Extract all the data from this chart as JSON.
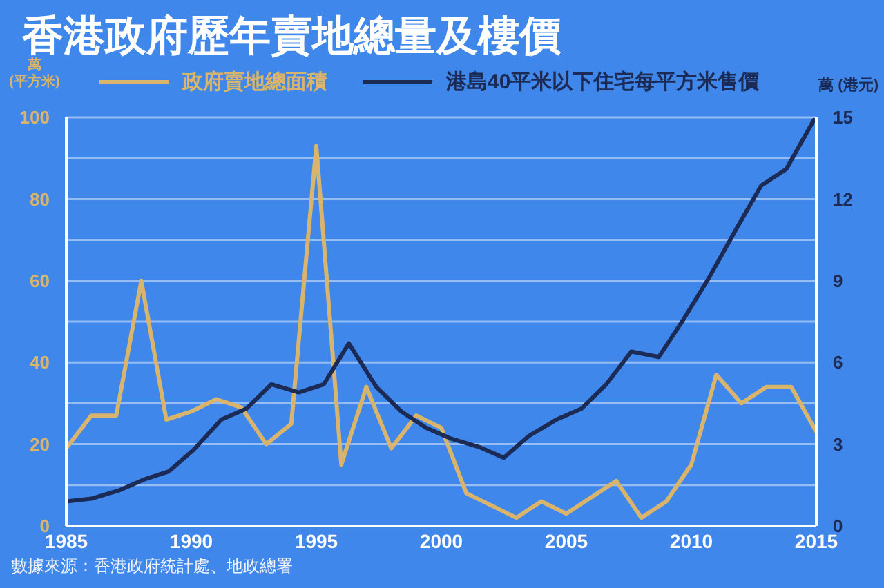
{
  "chart_data": {
    "type": "line",
    "title": "香港政府歷年賣地總量及樓價",
    "ylabel": "萬 (平方米)",
    "y2label": "萬 (港元)",
    "annotations": [
      "數據來源：香港政府統計處、地政總署"
    ],
    "x": [
      1985,
      1986,
      1987,
      1988,
      1989,
      1990,
      1991,
      1992,
      1993,
      1994,
      1995,
      1996,
      1997,
      1998,
      1999,
      2000,
      2001,
      2002,
      2003,
      2004,
      2005,
      2006,
      2007,
      2008,
      2009,
      2010,
      2011,
      2012,
      2013,
      2014,
      2015
    ],
    "series": [
      {
        "name": "政府賣地總面積",
        "color": "#d8b46c",
        "values": [
          19,
          27,
          27,
          60,
          26,
          28,
          31,
          29,
          20,
          25,
          93,
          15,
          34,
          19,
          27,
          24,
          8,
          5,
          2,
          6,
          3,
          7,
          11,
          2,
          6,
          15,
          37,
          30,
          34,
          34,
          23
        ]
      },
      {
        "name": "港島40平米以下住宅每平方米售價",
        "color": "#1c2b55",
        "axis": "y2",
        "x": [
          1985.0,
          1986.0,
          1987.1,
          1988.1,
          1989.1,
          1990.1,
          1991.2,
          1992.2,
          1993.2,
          1994.3,
          1995.3,
          1996.3,
          1997.4,
          1998.4,
          1999.4,
          2000.4,
          2001.5,
          2002.5,
          2003.5,
          2004.6,
          2005.6,
          2006.6,
          2007.6,
          2008.7,
          2009.7,
          2010.7,
          2011.8,
          2012.8,
          2013.8,
          2014.9
        ],
        "values": [
          0.9,
          1.0,
          1.3,
          1.7,
          2.0,
          2.8,
          3.9,
          4.3,
          5.2,
          4.9,
          5.2,
          6.7,
          5.1,
          4.2,
          3.6,
          3.2,
          2.9,
          2.5,
          3.3,
          3.9,
          4.3,
          5.2,
          6.4,
          6.2,
          7.6,
          9.1,
          10.9,
          12.5,
          13.1,
          14.9
        ]
      }
    ],
    "xlim": [
      1985,
      2015
    ],
    "xticks": [
      1985,
      1990,
      1995,
      2000,
      2005,
      2010,
      2015
    ],
    "ylim": [
      0,
      100
    ],
    "yticks": [
      0,
      {
        "value": 10,
        "label": null
      },
      20,
      {
        "value": 30,
        "label": null
      },
      40,
      {
        "value": 50,
        "label": null
      },
      60,
      {
        "value": 70,
        "label": null
      },
      80,
      {
        "value": 90,
        "label": null
      },
      100
    ],
    "y2lim": [
      0,
      15
    ],
    "y2ticks": [
      0,
      3,
      6,
      9,
      12,
      15
    ],
    "grid": "y",
    "legend": "top"
  }
}
